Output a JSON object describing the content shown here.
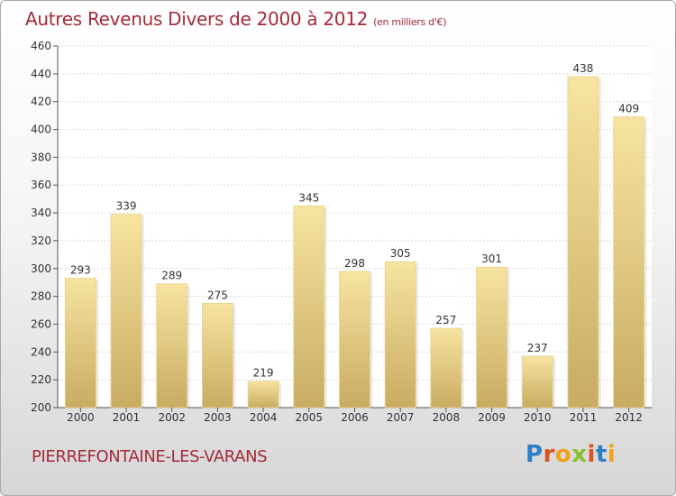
{
  "title": "Autres Revenus Divers de 2000 à 2012",
  "title_unit": "(en milliers d'€)",
  "commune": "PIERREFONTAINE-LES-VARANS",
  "logo_letters": [
    "P",
    "r",
    "o",
    "x",
    "i",
    "t",
    "i"
  ],
  "colors": {
    "title": "#a52a3a",
    "bar_light": "#f6e4a0",
    "bar_dark": "#c9ab62",
    "axis": "#555555"
  },
  "chart_data": {
    "type": "bar",
    "categories": [
      "2000",
      "2001",
      "2002",
      "2003",
      "2004",
      "2005",
      "2006",
      "2007",
      "2008",
      "2009",
      "2010",
      "2011",
      "2012"
    ],
    "values": [
      293,
      339,
      289,
      275,
      219,
      345,
      298,
      305,
      257,
      301,
      237,
      438,
      409
    ],
    "yticks": [
      200,
      220,
      240,
      260,
      280,
      300,
      320,
      340,
      360,
      380,
      400,
      420,
      440,
      460
    ],
    "ylim": [
      200,
      460
    ],
    "grid": true,
    "legend": "none"
  }
}
